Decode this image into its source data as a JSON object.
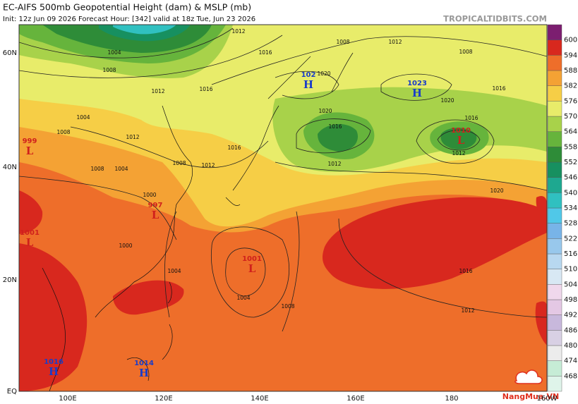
{
  "header": {
    "title": "EC-AIFS 500mb Geopotential Height (dam) & MSLP (mb)",
    "subtitle": "Init: 12z Jun 09 2026   Forecast Hour: [342]   valid at 18z Tue, Jun 23 2026",
    "credit": "TROPICALTIDBITS.COM"
  },
  "watermark": "NangMua.VN",
  "longitude_labels": [
    "100E",
    "120E",
    "140E",
    "160E",
    "180",
    "160W"
  ],
  "latitude_labels": [
    "60N",
    "40N",
    "20N",
    "EQ"
  ],
  "colorbar": {
    "levels": [
      468,
      474,
      480,
      486,
      492,
      498,
      504,
      510,
      516,
      522,
      528,
      534,
      540,
      546,
      552,
      558,
      564,
      570,
      576,
      582,
      588,
      594,
      600
    ],
    "colors": [
      "#dff4ea",
      "#c6ecd6",
      "#ececec",
      "#d8d0e4",
      "#c8b8dc",
      "#e4c8e4",
      "#f0d8ec",
      "#d8e8f4",
      "#b8d8f0",
      "#98c8ec",
      "#78b4e8",
      "#50c8e8",
      "#30c0c0",
      "#1ea890",
      "#179060",
      "#2e8c38",
      "#66b43c",
      "#a8d24a",
      "#e8ec6a",
      "#f6ce46",
      "#f4a234",
      "#ee6e2a",
      "#d8281e",
      "#7c1e70"
    ]
  },
  "pressure_centers": [
    {
      "type": "H",
      "value": "102"
    },
    {
      "type": "H",
      "value": "1023"
    },
    {
      "type": "L",
      "value": "1010"
    },
    {
      "type": "L",
      "value": "997"
    },
    {
      "type": "L",
      "value": "1001"
    },
    {
      "type": "L",
      "value": "999"
    },
    {
      "type": "L",
      "value": "1001"
    },
    {
      "type": "H",
      "value": "1016"
    },
    {
      "type": "H",
      "value": "1014"
    }
  ],
  "isobar_labels": [
    "1012",
    "1004",
    "1008",
    "1016",
    "1008",
    "1012",
    "1008",
    "1016",
    "1020",
    "1016",
    "1012",
    "1020",
    "1016",
    "1012",
    "1020",
    "1020",
    "1016",
    "1012",
    "1016",
    "1012",
    "1008",
    "1004",
    "1000",
    "1004",
    "1004",
    "1008",
    "1000",
    "1008",
    "1012",
    "1016",
    "1012",
    "1004",
    "1008"
  ]
}
